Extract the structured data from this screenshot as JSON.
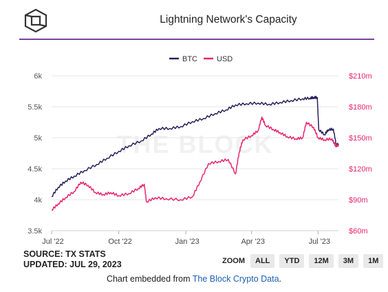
{
  "header": {
    "title": "Lightning Network's Capacity",
    "logo_icon": "the-block-cube-logo"
  },
  "footer": {
    "source": "SOURCE: TX STATS",
    "updated": "UPDATED: JUL 29, 2023",
    "embed_text": "Chart embedded from",
    "embed_link": "The Block Crypto Data",
    "embed_end": "."
  },
  "zoom": {
    "label": "ZOOM",
    "buttons": [
      "ALL",
      "YTD",
      "12M",
      "3M",
      "1M"
    ]
  },
  "chart_data": {
    "type": "line",
    "watermark": "THE BLOCK",
    "legend": {
      "placement": "top-center",
      "items": [
        "BTC",
        "USD"
      ]
    },
    "colors": {
      "BTC": "#2a1f5a",
      "USD": "#e8246e",
      "left_tick": "#555555",
      "right_tick": "#e8246e"
    },
    "x_ticks": [
      "Jul '22",
      "Oct '22",
      "Jan '23",
      "Apr '23",
      "Jul '23"
    ],
    "x_tick_dates": [
      "2022-07-01",
      "2022-10-01",
      "2023-01-01",
      "2023-04-01",
      "2023-07-01"
    ],
    "x_range": [
      "2022-07-01",
      "2023-07-29"
    ],
    "y_left": {
      "ticks": [
        3500,
        4000,
        4500,
        5000,
        5500,
        6000
      ],
      "tick_labels": [
        "3.5k",
        "4k",
        "4.5k",
        "5k",
        "5.5k",
        "6k"
      ],
      "range": [
        3500,
        6000
      ]
    },
    "y_right": {
      "ticks": [
        60,
        90,
        120,
        150,
        180,
        210
      ],
      "tick_labels": [
        "$60m",
        "$90m",
        "$120m",
        "$150m",
        "$180m",
        "$210m"
      ],
      "range": [
        60,
        210
      ]
    },
    "grid": "horizontal",
    "series": [
      {
        "name": "BTC",
        "axis": "left",
        "points": [
          [
            "2022-07-01",
            4050
          ],
          [
            "2022-07-10",
            4200
          ],
          [
            "2022-07-20",
            4300
          ],
          [
            "2022-08-01",
            4380
          ],
          [
            "2022-08-15",
            4470
          ],
          [
            "2022-09-01",
            4570
          ],
          [
            "2022-09-15",
            4670
          ],
          [
            "2022-10-01",
            4780
          ],
          [
            "2022-10-15",
            4870
          ],
          [
            "2022-11-01",
            4950
          ],
          [
            "2022-11-15",
            5060
          ],
          [
            "2022-11-25",
            5150
          ],
          [
            "2022-12-10",
            5150
          ],
          [
            "2022-12-25",
            5180
          ],
          [
            "2023-01-10",
            5260
          ],
          [
            "2023-01-25",
            5310
          ],
          [
            "2023-02-10",
            5390
          ],
          [
            "2023-02-25",
            5450
          ],
          [
            "2023-03-10",
            5530
          ],
          [
            "2023-03-25",
            5550
          ],
          [
            "2023-04-10",
            5560
          ],
          [
            "2023-04-25",
            5540
          ],
          [
            "2023-05-10",
            5570
          ],
          [
            "2023-05-25",
            5600
          ],
          [
            "2023-06-10",
            5630
          ],
          [
            "2023-06-20",
            5640
          ],
          [
            "2023-06-25",
            5650
          ],
          [
            "2023-06-30",
            5650
          ],
          [
            "2023-07-02",
            5130
          ],
          [
            "2023-07-10",
            5050
          ],
          [
            "2023-07-15",
            5130
          ],
          [
            "2023-07-22",
            5140
          ],
          [
            "2023-07-26",
            4880
          ],
          [
            "2023-07-29",
            4900
          ]
        ]
      },
      {
        "name": "USD",
        "axis": "right",
        "points": [
          [
            "2022-07-01",
            80
          ],
          [
            "2022-07-10",
            86
          ],
          [
            "2022-07-20",
            92
          ],
          [
            "2022-08-01",
            98
          ],
          [
            "2022-08-10",
            107
          ],
          [
            "2022-08-20",
            104
          ],
          [
            "2022-08-30",
            97
          ],
          [
            "2022-09-10",
            95
          ],
          [
            "2022-09-20",
            97
          ],
          [
            "2022-10-01",
            94
          ],
          [
            "2022-10-15",
            96
          ],
          [
            "2022-10-28",
            101
          ],
          [
            "2022-11-05",
            105
          ],
          [
            "2022-11-08",
            88
          ],
          [
            "2022-11-20",
            92
          ],
          [
            "2022-12-05",
            91
          ],
          [
            "2022-12-25",
            90
          ],
          [
            "2023-01-10",
            93
          ],
          [
            "2023-01-20",
            107
          ],
          [
            "2023-02-01",
            125
          ],
          [
            "2023-02-15",
            127
          ],
          [
            "2023-02-28",
            129
          ],
          [
            "2023-03-10",
            115
          ],
          [
            "2023-03-15",
            136
          ],
          [
            "2023-03-20",
            148
          ],
          [
            "2023-04-01",
            152
          ],
          [
            "2023-04-10",
            157
          ],
          [
            "2023-04-15",
            170
          ],
          [
            "2023-04-20",
            162
          ],
          [
            "2023-05-01",
            158
          ],
          [
            "2023-05-10",
            155
          ],
          [
            "2023-05-20",
            151
          ],
          [
            "2023-06-01",
            149
          ],
          [
            "2023-06-10",
            150
          ],
          [
            "2023-06-15",
            165
          ],
          [
            "2023-06-25",
            160
          ],
          [
            "2023-07-01",
            150
          ],
          [
            "2023-07-10",
            148
          ],
          [
            "2023-07-20",
            149
          ],
          [
            "2023-07-25",
            142
          ],
          [
            "2023-07-29",
            143
          ]
        ]
      }
    ]
  }
}
